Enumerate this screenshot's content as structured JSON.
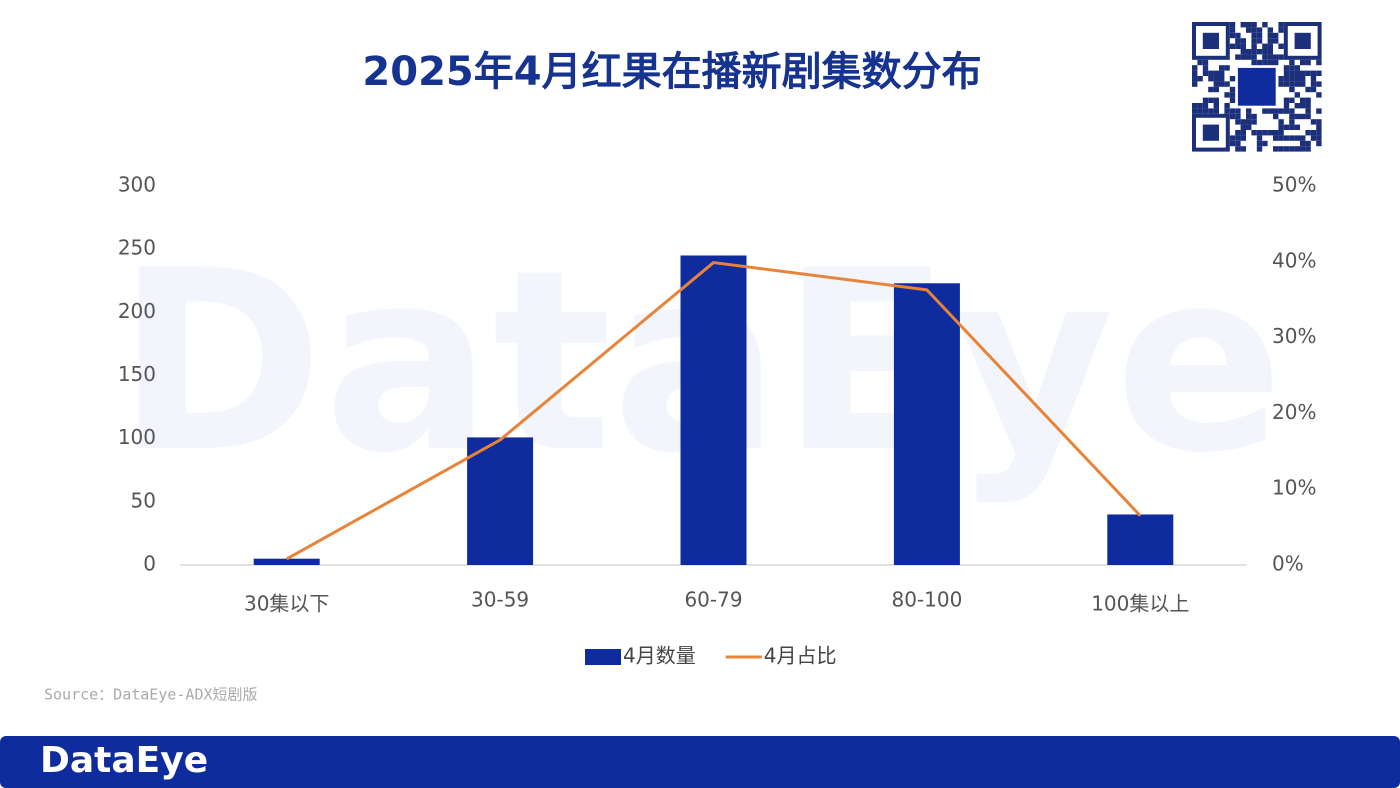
{
  "page_title": "2025年4月红果在播新剧集数分布",
  "watermark": "DataEye",
  "source": "Source：DataEye-ADX短剧版",
  "footer_brand": "DataEye",
  "chart_data": {
    "type": "bar",
    "categories": [
      "30集以下",
      "30-59",
      "60-79",
      "80-100",
      "100集以上"
    ],
    "series": [
      {
        "name": "4月数量",
        "color": "#0f2c9e",
        "type": "bar",
        "values": [
          5,
          101,
          245,
          223,
          40
        ]
      },
      {
        "name": "4月占比",
        "color": "#e8843a",
        "type": "line",
        "axis": "y2",
        "values": [
          0.8,
          16.5,
          39.9,
          36.3,
          6.5
        ]
      }
    ],
    "ylim": [
      0,
      300
    ],
    "yticks": [
      0,
      50,
      100,
      150,
      200,
      250,
      300
    ],
    "y2lim": [
      0,
      50
    ],
    "y2ticks": [
      {
        "value": 0,
        "label": "0%"
      },
      {
        "value": 10,
        "label": "10%"
      },
      {
        "value": 20,
        "label": "20%"
      },
      {
        "value": 30,
        "label": "30%"
      },
      {
        "value": 40,
        "label": "40%"
      },
      {
        "value": 50,
        "label": "50%"
      }
    ],
    "grid": false,
    "legend": "bottom"
  }
}
